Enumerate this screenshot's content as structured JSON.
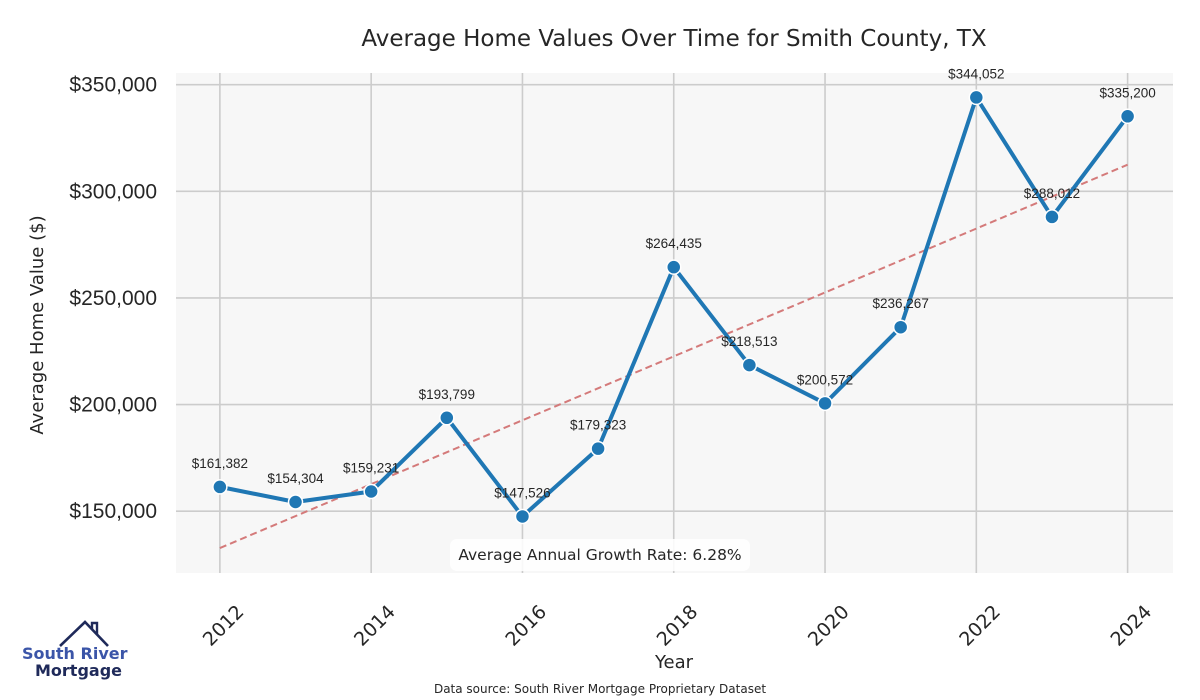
{
  "chart_data": {
    "type": "line",
    "title": "Average Home Values Over Time for Smith County, TX",
    "xlabel": "Year",
    "ylabel": "Average Home Value ($)",
    "x": [
      2012,
      2013,
      2014,
      2015,
      2016,
      2017,
      2018,
      2019,
      2020,
      2021,
      2022,
      2023,
      2024
    ],
    "series": [
      {
        "name": "Average Home Value",
        "values": [
          161382,
          154304,
          159231,
          193799,
          147526,
          179323,
          264435,
          218513,
          200572,
          236267,
          344052,
          288012,
          335200
        ],
        "labels": [
          "$161,382",
          "$154,304",
          "$159,231",
          "$193,799",
          "$147,526",
          "$179,323",
          "$264,435",
          "$218,513",
          "$200,572",
          "$236,267",
          "$344,052",
          "$288,012",
          "$335,200"
        ],
        "color": "#1f77b4"
      }
    ],
    "trendline": {
      "name": "Trend",
      "x": [
        2012,
        2024
      ],
      "values": [
        132700,
        312500
      ],
      "color": "#d47a7a",
      "style": "dashed"
    },
    "xticks": [
      2012,
      2014,
      2016,
      2018,
      2020,
      2022,
      2024
    ],
    "xtick_labels": [
      "2012",
      "2014",
      "2016",
      "2018",
      "2020",
      "2022",
      "2024"
    ],
    "yticks": [
      150000,
      200000,
      250000,
      300000,
      350000
    ],
    "ytick_labels": [
      "$150,000",
      "$200,000",
      "$250,000",
      "$300,000",
      "$350,000"
    ],
    "xlim": [
      2011.42,
      2024.6
    ],
    "ylim": [
      121000,
      355500
    ],
    "grid": true,
    "annotation": "Average Annual Growth Rate: 6.28%",
    "annotation_placement": "bottom-center"
  },
  "footer": {
    "source": "Data source: South River Mortgage Proprietary Dataset"
  },
  "logo": {
    "line1": "South River",
    "line2": "Mortgage"
  },
  "colors": {
    "plot_bg": "#f7f7f7",
    "grid": "#cccccc",
    "line": "#1f77b4",
    "trend": "#d47a7a",
    "logo_light": "#3b55a8",
    "logo_dark": "#1f2a5a"
  }
}
